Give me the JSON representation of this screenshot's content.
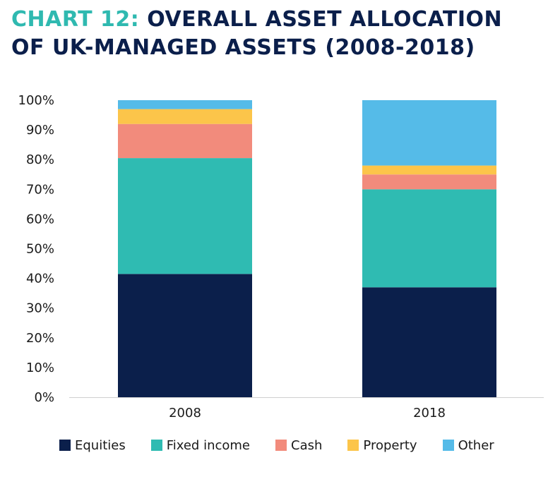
{
  "title": {
    "prefix": "CHART 12:",
    "main": "OVERALL ASSET ALLOCATION OF UK-MANAGED ASSETS (2008-2018)"
  },
  "chart_data": {
    "type": "bar",
    "stacked": true,
    "categories": [
      "2008",
      "2018"
    ],
    "series": [
      {
        "name": "Equities",
        "color": "#0b1f4b",
        "values": [
          41.5,
          37
        ]
      },
      {
        "name": "Fixed income",
        "color": "#2fbbb2",
        "values": [
          39,
          33
        ]
      },
      {
        "name": "Cash",
        "color": "#f28b7c",
        "values": [
          11.5,
          5
        ]
      },
      {
        "name": "Property",
        "color": "#fcc54a",
        "values": [
          5,
          3
        ]
      },
      {
        "name": "Other",
        "color": "#55bbe8",
        "values": [
          3,
          22
        ]
      }
    ],
    "yticks": [
      "0%",
      "10%",
      "20%",
      "30%",
      "40%",
      "50%",
      "60%",
      "70%",
      "80%",
      "90%",
      "100%"
    ],
    "ylim": [
      0,
      100
    ],
    "grid": false,
    "legend_position": "bottom"
  }
}
